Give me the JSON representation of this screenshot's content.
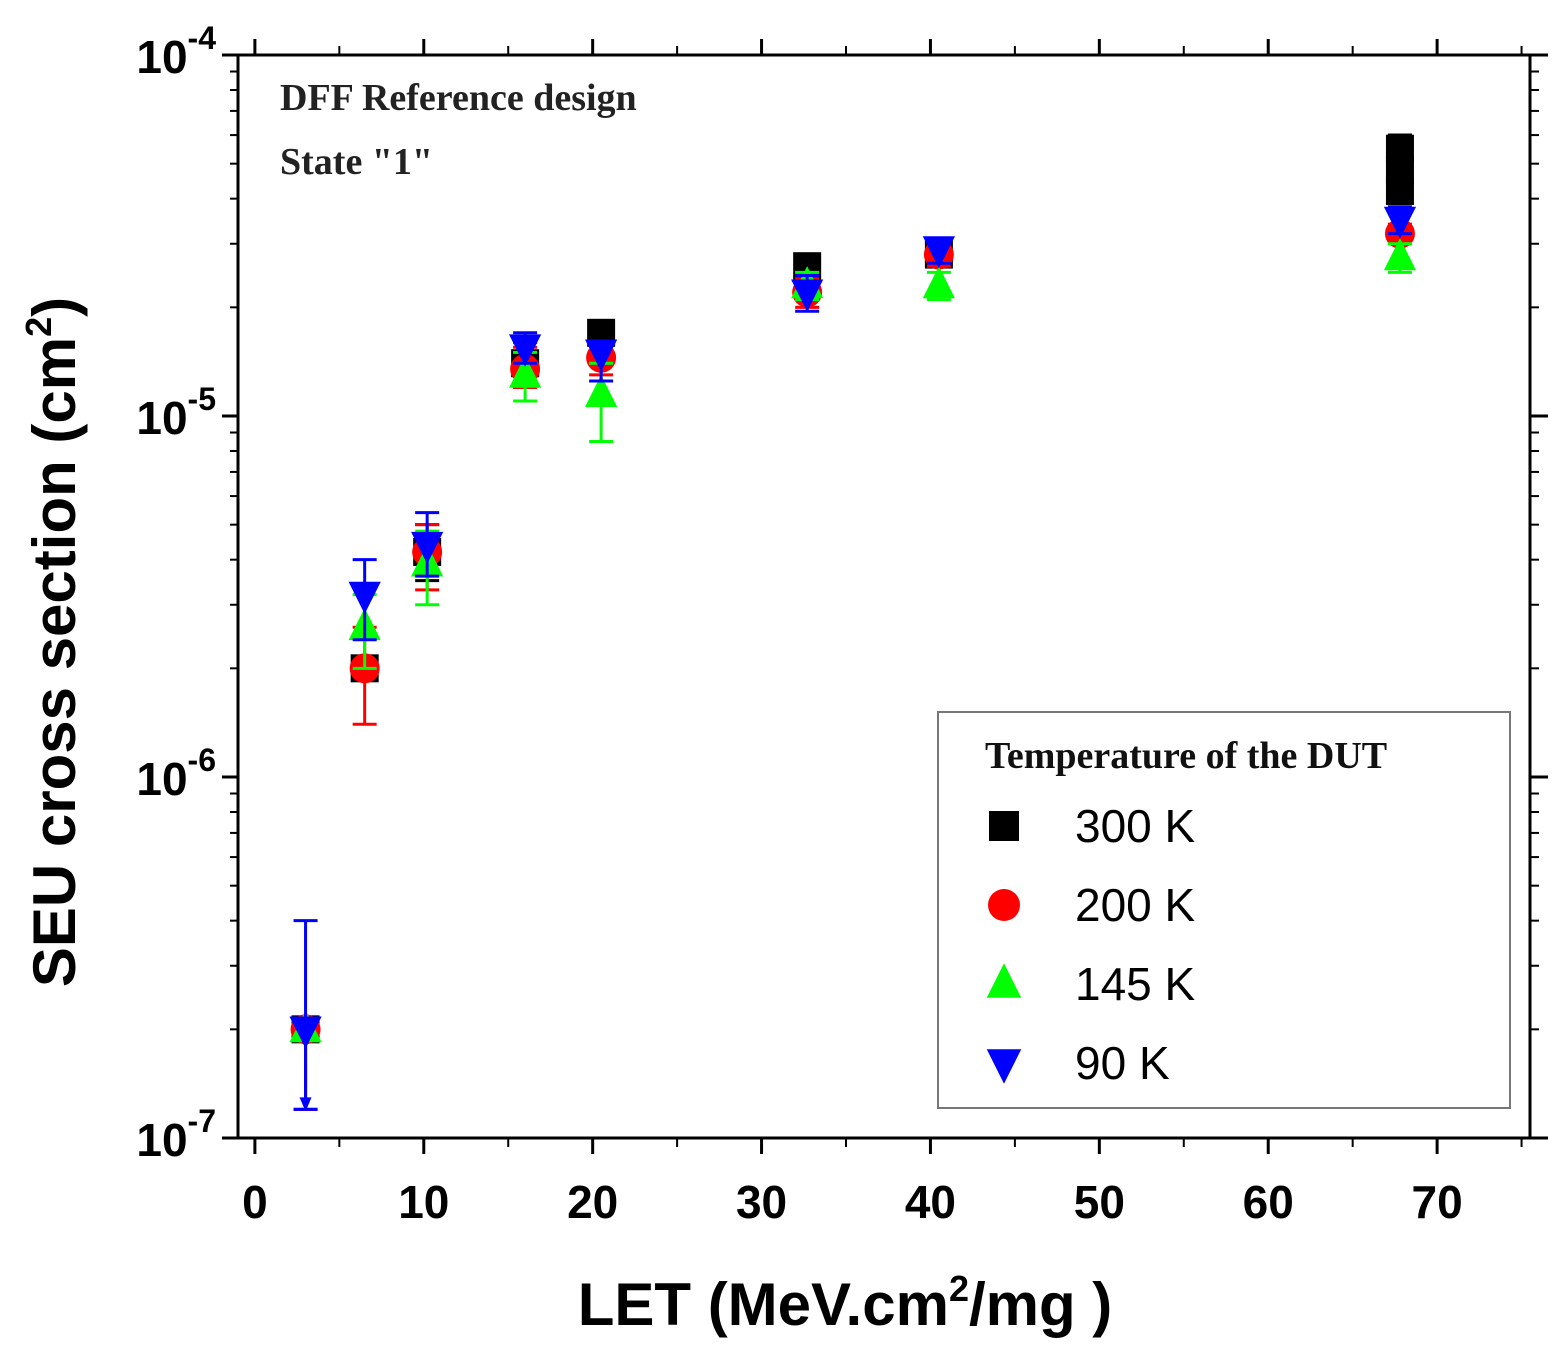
{
  "chart_data": {
    "type": "scatter",
    "annotations": [
      "DFF Reference design",
      "State \"1\""
    ],
    "xlabel": "LET (MeV.cm²/mg)",
    "xlabel_parts": {
      "base": "LET (MeV.cm",
      "sup": "2",
      "tail": "/mg )"
    },
    "ylabel": "SEU cross section (cm²)",
    "ylabel_parts": {
      "base": "SEU cross section (cm",
      "sup": "2",
      "tail": ")"
    },
    "xlim": [
      -1,
      75.5
    ],
    "ylim": [
      1e-07,
      0.0001
    ],
    "yscale": "log",
    "x_ticks": [
      0,
      10,
      20,
      30,
      40,
      50,
      60,
      70
    ],
    "x_tick_labels": [
      "0",
      "10",
      "20",
      "30",
      "40",
      "50",
      "60",
      "70"
    ],
    "y_ticks": [
      1e-07,
      1e-06,
      1e-05,
      0.0001
    ],
    "y_tick_labels": [
      {
        "base": "10",
        "exp": "-7"
      },
      {
        "base": "10",
        "exp": "-6"
      },
      {
        "base": "10",
        "exp": "-5"
      },
      {
        "base": "10",
        "exp": "-4"
      }
    ],
    "legend": {
      "title": "Temperature of the DUT",
      "position": "bottom-right"
    },
    "series": [
      {
        "name": "300 K",
        "marker": "square",
        "color": "#000000",
        "points": [
          {
            "x": 3.0,
            "y": 2e-07,
            "lo": 1.2e-07,
            "hi": 2e-07
          },
          {
            "x": 6.5,
            "y": 2e-06,
            "lo": 2e-06,
            "hi": 2e-06
          },
          {
            "x": 10.2,
            "y": 4.2e-06,
            "lo": 3.5e-06,
            "hi": 5e-06
          },
          {
            "x": 16.0,
            "y": 1.4e-05,
            "lo": 1.2e-05,
            "hi": 1.6e-05
          },
          {
            "x": 20.5,
            "y": 1.7e-05,
            "lo": 1.5e-05,
            "hi": 1.8e-05
          },
          {
            "x": 32.7,
            "y": 2.6e-05,
            "lo": 2.4e-05,
            "hi": 2.8e-05
          },
          {
            "x": 40.5,
            "y": 2.8e-05,
            "lo": 2.6e-05,
            "hi": 3e-05
          },
          {
            "x": 67.8,
            "y": 5.5e-05,
            "lo": 4e-05,
            "hi": 6e-05
          },
          {
            "x": 67.8,
            "y": 4.8e-05,
            "lo": 4e-05,
            "hi": 6e-05
          },
          {
            "x": 67.8,
            "y": 4.2e-05,
            "lo": 4e-05,
            "hi": 6e-05
          }
        ]
      },
      {
        "name": "200 K",
        "marker": "circle",
        "color": "#ff0000",
        "points": [
          {
            "x": 3.0,
            "y": 2e-07,
            "lo": 1.2e-07,
            "hi": 2e-07
          },
          {
            "x": 6.5,
            "y": 2e-06,
            "lo": 1.4e-06,
            "hi": 2.6e-06
          },
          {
            "x": 10.2,
            "y": 4.2e-06,
            "lo": 3.3e-06,
            "hi": 5e-06
          },
          {
            "x": 16.0,
            "y": 1.35e-05,
            "lo": 1.2e-05,
            "hi": 1.55e-05
          },
          {
            "x": 20.5,
            "y": 1.45e-05,
            "lo": 1.3e-05,
            "hi": 1.6e-05
          },
          {
            "x": 32.7,
            "y": 2.2e-05,
            "lo": 2e-05,
            "hi": 2.4e-05
          },
          {
            "x": 40.5,
            "y": 2.8e-05,
            "lo": 2.6e-05,
            "hi": 3e-05
          },
          {
            "x": 67.8,
            "y": 3.2e-05,
            "lo": 3e-05,
            "hi": 3.4e-05
          }
        ]
      },
      {
        "name": "145 K",
        "marker": "triangle-up",
        "color": "#00ff00",
        "points": [
          {
            "x": 3.0,
            "y": 2e-07,
            "lo": 2e-07,
            "hi": 2e-07
          },
          {
            "x": 6.5,
            "y": 2.6e-06,
            "lo": 2e-06,
            "hi": 3.2e-06
          },
          {
            "x": 10.2,
            "y": 3.9e-06,
            "lo": 3e-06,
            "hi": 4.8e-06
          },
          {
            "x": 16.0,
            "y": 1.3e-05,
            "lo": 1.1e-05,
            "hi": 1.5e-05
          },
          {
            "x": 20.5,
            "y": 1.15e-05,
            "lo": 8.5e-06,
            "hi": 1.4e-05
          },
          {
            "x": 32.7,
            "y": 2.3e-05,
            "lo": 2.1e-05,
            "hi": 2.5e-05
          },
          {
            "x": 40.5,
            "y": 2.3e-05,
            "lo": 2.1e-05,
            "hi": 2.5e-05
          },
          {
            "x": 67.8,
            "y": 2.75e-05,
            "lo": 2.5e-05,
            "hi": 3e-05
          }
        ]
      },
      {
        "name": "90 K",
        "marker": "triangle-down",
        "color": "#0000ff",
        "points": [
          {
            "x": 3.0,
            "y": 2e-07,
            "lo": 1.2e-07,
            "hi": 4e-07
          },
          {
            "x": 6.5,
            "y": 3.2e-06,
            "lo": 2.4e-06,
            "hi": 4e-06
          },
          {
            "x": 10.2,
            "y": 4.4e-06,
            "lo": 3.6e-06,
            "hi": 5.4e-06
          },
          {
            "x": 16.0,
            "y": 1.55e-05,
            "lo": 1.4e-05,
            "hi": 1.7e-05
          },
          {
            "x": 20.5,
            "y": 1.5e-05,
            "lo": 1.25e-05,
            "hi": 1.6e-05
          },
          {
            "x": 32.7,
            "y": 2.2e-05,
            "lo": 1.95e-05,
            "hi": 2.45e-05
          },
          {
            "x": 40.5,
            "y": 2.9e-05,
            "lo": 2.65e-05,
            "hi": 3.1e-05
          },
          {
            "x": 67.8,
            "y": 3.5e-05,
            "lo": 3.2e-05,
            "hi": 3.8e-05
          }
        ]
      }
    ]
  }
}
